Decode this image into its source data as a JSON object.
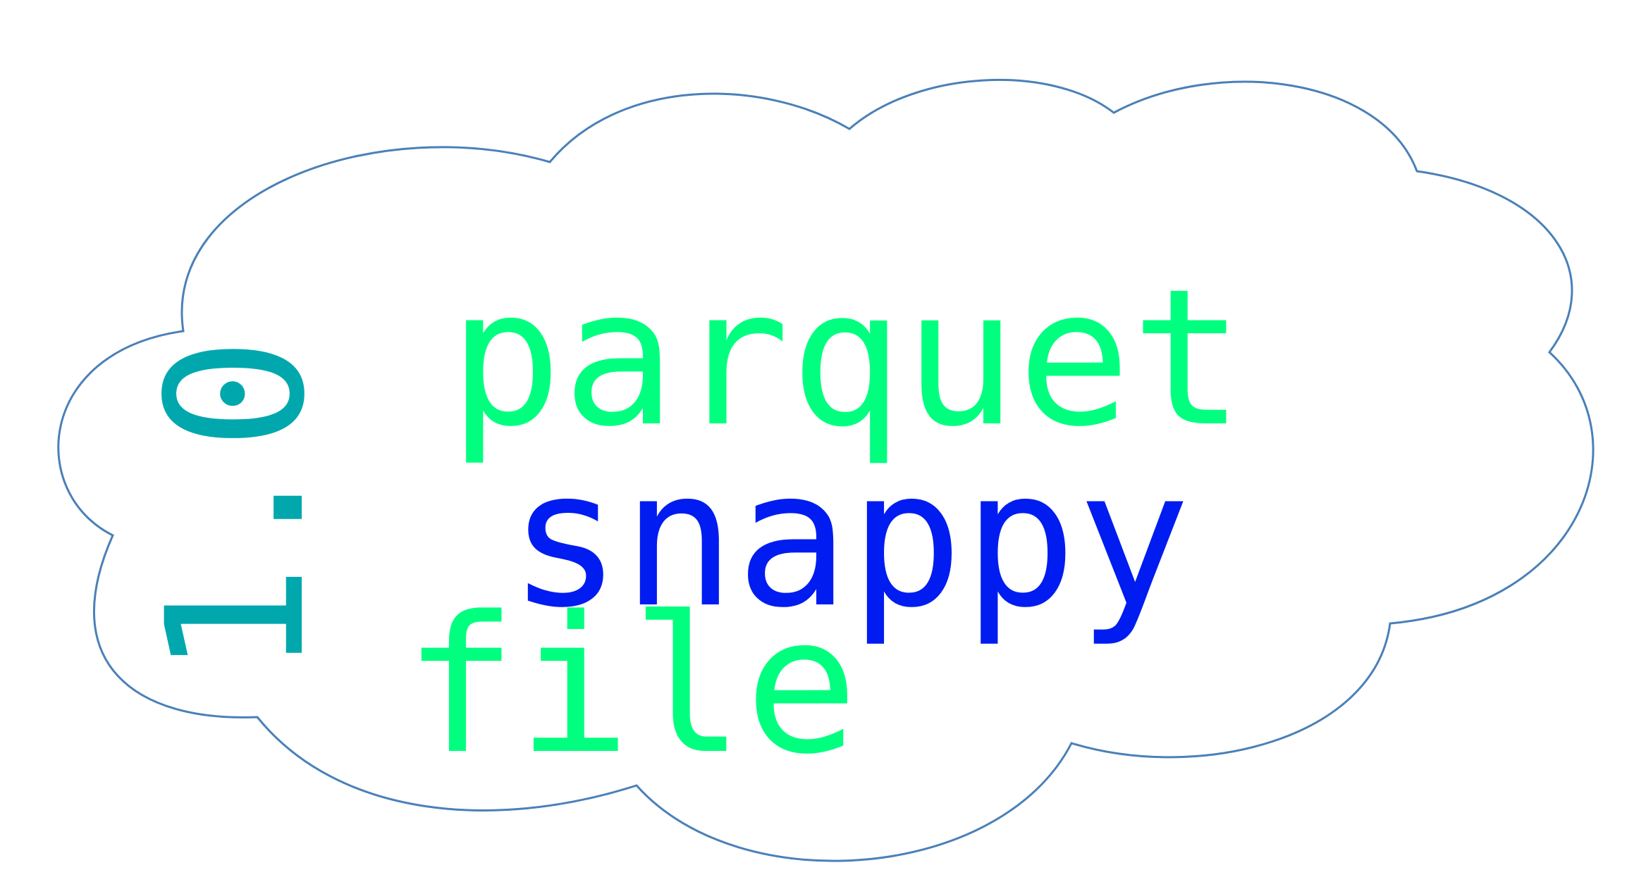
{
  "words": [
    {
      "text": "parquet",
      "color": "#00FF7F",
      "orientation": "horizontal"
    },
    {
      "text": "snappy",
      "color": "#001CF0",
      "orientation": "horizontal"
    },
    {
      "text": "file",
      "color": "#00FF7F",
      "orientation": "horizontal"
    },
    {
      "text": "1.0",
      "color": "#00A8AE",
      "orientation": "vertical"
    }
  ],
  "colors": {
    "outline": "#4A80B8",
    "background": "#FFFFFF"
  }
}
